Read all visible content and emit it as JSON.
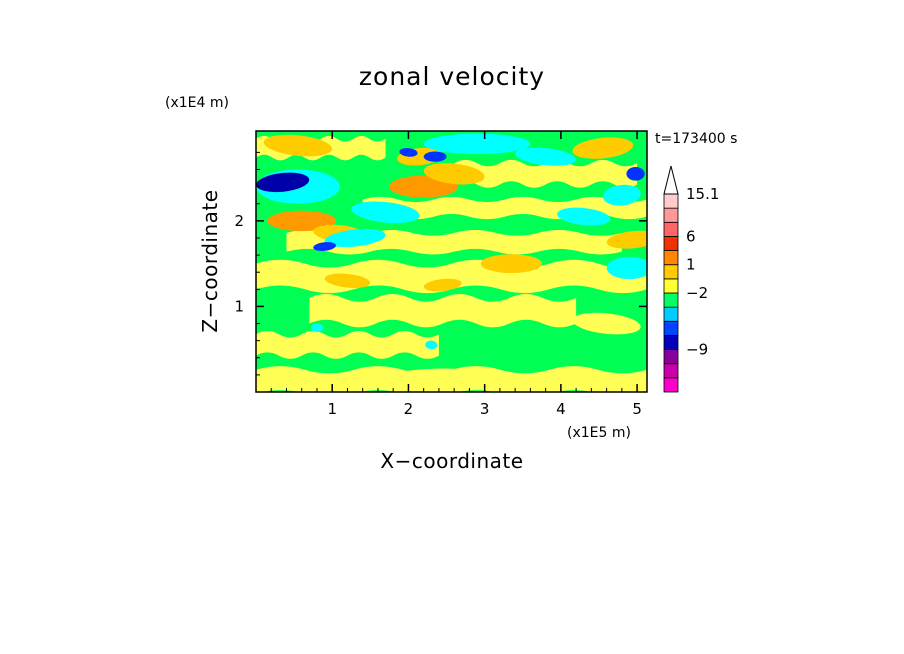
{
  "chart_data": {
    "type": "heatmap",
    "title": "zonal velocity",
    "xlabel": "X−coordinate",
    "ylabel": "Z−coordinate",
    "x_multiplier": "(x1E5 m)",
    "y_multiplier": "(x1E4 m)",
    "time_label": "t=173400 s",
    "xlim": [
      0,
      5.13
    ],
    "ylim": [
      0,
      3.05
    ],
    "x_ticks": [
      {
        "value": 1,
        "label": "1"
      },
      {
        "value": 2,
        "label": "2"
      },
      {
        "value": 3,
        "label": "3"
      },
      {
        "value": 4,
        "label": "4"
      },
      {
        "value": 5,
        "label": "5"
      }
    ],
    "y_ticks": [
      {
        "value": 1,
        "label": "1"
      },
      {
        "value": 2,
        "label": "2"
      }
    ],
    "colorbar": {
      "levels": [
        {
          "color": "#ff00cc"
        },
        {
          "color": "#cc00aa"
        },
        {
          "color": "#880099"
        },
        {
          "color": "#0000bb"
        },
        {
          "color": "#0044ff"
        },
        {
          "color": "#00ccff"
        },
        {
          "color": "#00ff66"
        },
        {
          "color": "#ffff33"
        },
        {
          "color": "#ffcc00"
        },
        {
          "color": "#ff8800"
        },
        {
          "color": "#ee3300"
        },
        {
          "color": "#ff6666"
        },
        {
          "color": "#ff9999"
        },
        {
          "color": "#ffcccc"
        }
      ],
      "labels": [
        {
          "text": "15.1",
          "level": 13
        },
        {
          "text": "6",
          "level": 10
        },
        {
          "text": "1",
          "level": 8
        },
        {
          "text": "−2",
          "level": 6
        },
        {
          "text": "−9",
          "level": 2
        }
      ],
      "extend_max": true
    },
    "colors": {
      "background": "#00ff55",
      "light_yellow": "#ffff55",
      "orange": "#ffcc00",
      "dark_orange": "#ff9900",
      "cyan": "#00ffff",
      "blue": "#0033ff",
      "dark_blue": "#0000aa"
    },
    "features": [
      {
        "kind": "band",
        "color": "light_yellow",
        "z": 0.12,
        "h": 0.28,
        "x0": 0.0,
        "x1": 5.13
      },
      {
        "kind": "band",
        "color": "light_yellow",
        "z": 0.55,
        "h": 0.25,
        "x0": 0.0,
        "x1": 2.4
      },
      {
        "kind": "band",
        "color": "light_yellow",
        "z": 0.95,
        "h": 0.3,
        "x0": 0.7,
        "x1": 4.2
      },
      {
        "kind": "band",
        "color": "light_yellow",
        "z": 1.35,
        "h": 0.3,
        "x0": 0.0,
        "x1": 5.13
      },
      {
        "kind": "band",
        "color": "light_yellow",
        "z": 1.75,
        "h": 0.22,
        "x0": 0.4,
        "x1": 4.8
      },
      {
        "kind": "band",
        "color": "light_yellow",
        "z": 2.15,
        "h": 0.2,
        "x0": 1.4,
        "x1": 5.13
      },
      {
        "kind": "band",
        "color": "light_yellow",
        "z": 2.55,
        "h": 0.25,
        "x0": 2.6,
        "x1": 5.0
      },
      {
        "kind": "band",
        "color": "light_yellow",
        "z": 2.85,
        "h": 0.22,
        "x0": 0.0,
        "x1": 1.7
      },
      {
        "kind": "blob",
        "color": "orange",
        "x": 0.55,
        "z": 2.88,
        "rx": 0.45,
        "rz": 0.12
      },
      {
        "kind": "blob",
        "color": "orange",
        "x": 2.15,
        "z": 2.75,
        "rx": 0.3,
        "rz": 0.1
      },
      {
        "kind": "blob",
        "color": "dark_orange",
        "x": 2.2,
        "z": 2.4,
        "rx": 0.45,
        "rz": 0.13
      },
      {
        "kind": "blob",
        "color": "orange",
        "x": 2.6,
        "z": 2.55,
        "rx": 0.4,
        "rz": 0.12
      },
      {
        "kind": "blob",
        "color": "orange",
        "x": 4.55,
        "z": 2.85,
        "rx": 0.4,
        "rz": 0.12
      },
      {
        "kind": "blob",
        "color": "dark_orange",
        "x": 0.6,
        "z": 2.0,
        "rx": 0.45,
        "rz": 0.12
      },
      {
        "kind": "blob",
        "color": "orange",
        "x": 1.1,
        "z": 1.85,
        "rx": 0.35,
        "rz": 0.1
      },
      {
        "kind": "blob",
        "color": "orange",
        "x": 4.95,
        "z": 1.78,
        "rx": 0.35,
        "rz": 0.1
      },
      {
        "kind": "blob",
        "color": "orange",
        "x": 3.35,
        "z": 1.5,
        "rx": 0.4,
        "rz": 0.11
      },
      {
        "kind": "blob",
        "color": "orange",
        "x": 1.2,
        "z": 1.3,
        "rx": 0.3,
        "rz": 0.08
      },
      {
        "kind": "blob",
        "color": "orange",
        "x": 2.45,
        "z": 1.25,
        "rx": 0.25,
        "rz": 0.07
      },
      {
        "kind": "blob",
        "color": "cyan",
        "x": 0.55,
        "z": 2.4,
        "rx": 0.55,
        "rz": 0.2
      },
      {
        "kind": "blob",
        "color": "cyan",
        "x": 1.7,
        "z": 2.1,
        "rx": 0.45,
        "rz": 0.12
      },
      {
        "kind": "blob",
        "color": "cyan",
        "x": 1.3,
        "z": 1.8,
        "rx": 0.4,
        "rz": 0.1
      },
      {
        "kind": "blob",
        "color": "cyan",
        "x": 2.9,
        "z": 2.9,
        "rx": 0.7,
        "rz": 0.12
      },
      {
        "kind": "blob",
        "color": "cyan",
        "x": 3.8,
        "z": 2.75,
        "rx": 0.4,
        "rz": 0.1
      },
      {
        "kind": "blob",
        "color": "cyan",
        "x": 4.8,
        "z": 2.3,
        "rx": 0.25,
        "rz": 0.12
      },
      {
        "kind": "blob",
        "color": "cyan",
        "x": 4.9,
        "z": 1.45,
        "rx": 0.3,
        "rz": 0.13
      },
      {
        "kind": "blob",
        "color": "cyan",
        "x": 4.3,
        "z": 2.05,
        "rx": 0.35,
        "rz": 0.1
      },
      {
        "kind": "blob",
        "color": "dark_blue",
        "x": 0.35,
        "z": 2.45,
        "rx": 0.35,
        "rz": 0.11
      },
      {
        "kind": "blob",
        "color": "blue",
        "x": 2.35,
        "z": 2.75,
        "rx": 0.15,
        "rz": 0.06
      },
      {
        "kind": "blob",
        "color": "blue",
        "x": 2.0,
        "z": 2.8,
        "rx": 0.12,
        "rz": 0.05
      },
      {
        "kind": "blob",
        "color": "blue",
        "x": 0.9,
        "z": 1.7,
        "rx": 0.15,
        "rz": 0.05
      },
      {
        "kind": "blob",
        "color": "blue",
        "x": 4.98,
        "z": 2.55,
        "rx": 0.12,
        "rz": 0.08
      },
      {
        "kind": "blob",
        "color": "light_yellow",
        "x": 4.6,
        "z": 0.8,
        "rx": 0.45,
        "rz": 0.12
      },
      {
        "kind": "blob",
        "color": "light_yellow",
        "x": 2.0,
        "z": 0.15,
        "rx": 0.8,
        "rz": 0.1
      },
      {
        "kind": "blob",
        "color": "cyan",
        "x": 0.8,
        "z": 0.75,
        "rx": 0.08,
        "rz": 0.05
      },
      {
        "kind": "blob",
        "color": "cyan",
        "x": 2.3,
        "z": 0.55,
        "rx": 0.08,
        "rz": 0.05
      }
    ]
  }
}
